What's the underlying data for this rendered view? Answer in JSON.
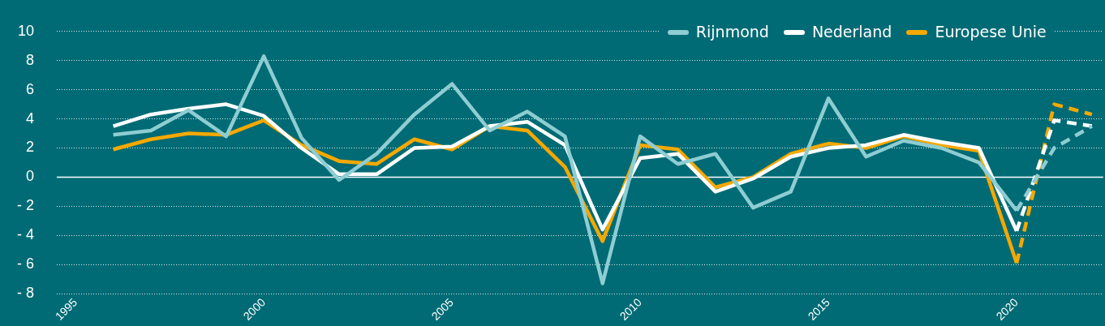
{
  "chart_data": {
    "type": "line",
    "x": [
      1996,
      1997,
      1998,
      1999,
      2000,
      2001,
      2002,
      2003,
      2004,
      2005,
      2006,
      2007,
      2008,
      2009,
      2010,
      2011,
      2012,
      2013,
      2014,
      2015,
      2016,
      2017,
      2018,
      2019,
      2020
    ],
    "series": [
      {
        "name": "Rijnmond",
        "color": "#8ecdd2",
        "values": [
          2.9,
          3.2,
          4.6,
          2.8,
          8.3,
          2.7,
          -0.2,
          1.6,
          4.3,
          6.4,
          3.2,
          4.5,
          2.8,
          -7.3,
          2.8,
          0.9,
          1.6,
          -2.1,
          -1.0,
          5.4,
          1.4,
          2.5,
          2.0,
          1.0,
          -2.3
        ]
      },
      {
        "name": "Nederland",
        "color": "#ffffff",
        "values": [
          3.5,
          4.3,
          4.7,
          5.0,
          4.2,
          2.0,
          0.2,
          0.2,
          2.0,
          2.1,
          3.5,
          3.8,
          2.2,
          -3.6,
          1.3,
          1.6,
          -1.0,
          -0.1,
          1.4,
          2.0,
          2.2,
          2.9,
          2.4,
          2.0,
          -3.7
        ]
      },
      {
        "name": "Europese Unie",
        "color": "#f5a800",
        "values": [
          1.9,
          2.6,
          3.0,
          2.9,
          3.9,
          2.2,
          1.1,
          0.9,
          2.6,
          1.9,
          3.5,
          3.2,
          0.7,
          -4.4,
          2.2,
          1.9,
          -0.7,
          0.0,
          1.6,
          2.3,
          2.0,
          2.8,
          2.2,
          1.8,
          -5.9
        ]
      },
      {
        "color": "#8ecdd2",
        "x": [
          2020,
          2021,
          2022
        ],
        "values": [
          -2.3,
          2.0,
          3.5
        ],
        "line_style": "dashed"
      },
      {
        "color": "#ffffff",
        "x": [
          2020,
          2021,
          2022
        ],
        "values": [
          -3.7,
          3.9,
          3.5
        ],
        "line_style": "dashed"
      },
      {
        "color": "#f5a800",
        "x": [
          2020,
          2021,
          2022
        ],
        "values": [
          -5.9,
          5.0,
          4.3
        ],
        "line_style": "dashed"
      }
    ],
    "xlim": [
      1994.5,
      2022.3
    ],
    "xticks": [
      1995,
      2000,
      2005,
      2010,
      2015,
      2020
    ],
    "ylim": [
      -8,
      10
    ],
    "yticks": [
      {
        "value": -8,
        "label": "- 8"
      },
      {
        "value": -6,
        "label": "- 6"
      },
      {
        "value": -4,
        "label": "- 4"
      },
      {
        "value": -2,
        "label": "- 2"
      },
      0,
      2,
      4,
      6,
      8,
      10
    ],
    "grid": "y",
    "legend": "top right",
    "line_style": "solid",
    "marker": "none",
    "ref_lines": [
      {
        "axis": "y",
        "value": 0,
        "color": "#ffffff"
      }
    ]
  }
}
